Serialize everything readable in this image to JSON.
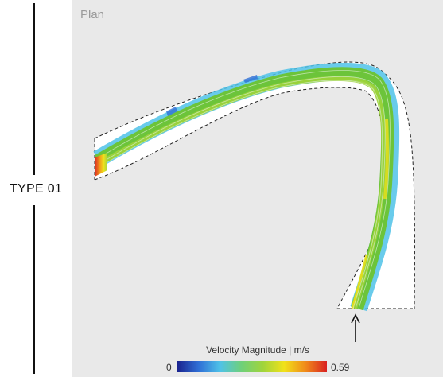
{
  "side_label": "TYPE 01",
  "panel": {
    "title": "Plan"
  },
  "legend": {
    "title": "Velocity Magnitude | m/s",
    "min_label": "0",
    "max_label": "0.59",
    "colors": [
      "#1a238f",
      "#2f6fd6",
      "#4fc2e8",
      "#6fd07a",
      "#9fd43c",
      "#f1e21a",
      "#f08a1a",
      "#d92121"
    ]
  },
  "colors": {
    "panel_bg": "#e9e9e9",
    "boundary": "#222222",
    "flow_core": "#6cc43a",
    "flow_slow": "#4fc2e8",
    "flow_fast": "#f1e21a",
    "flow_max": "#d92121"
  },
  "icons": [
    "inflow-arrow-icon"
  ]
}
